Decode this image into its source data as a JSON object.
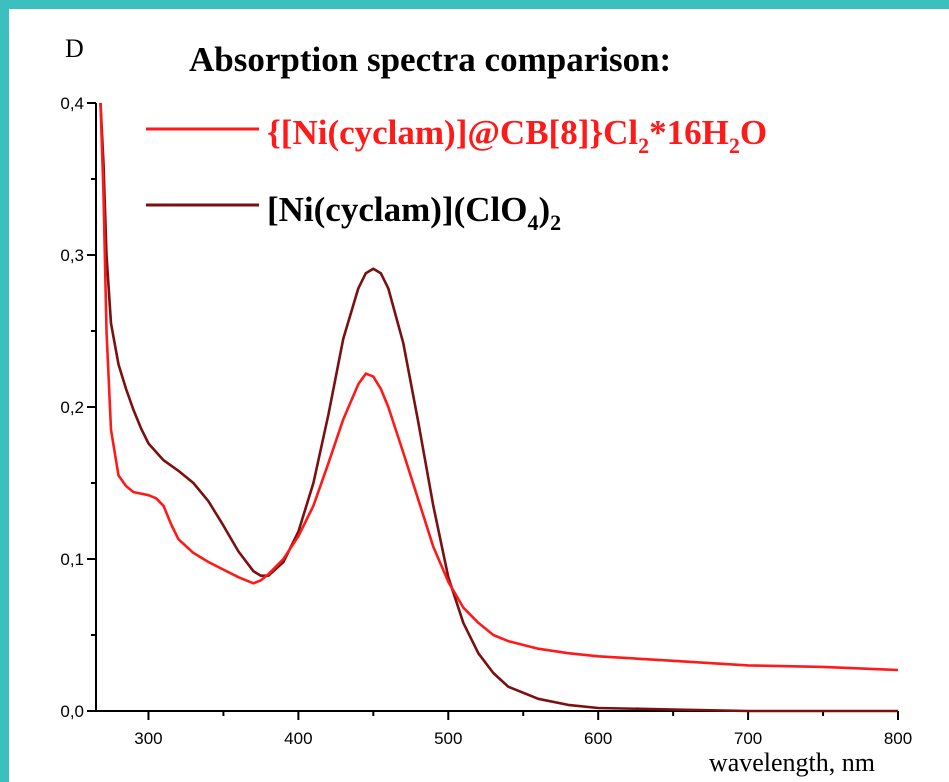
{
  "chart_data": {
    "type": "line",
    "title": "Absorption spectra comparison:",
    "ylabel": "D",
    "xlabel": "wavelength, nm",
    "xlim": [
      265,
      800
    ],
    "ylim": [
      0,
      0.4
    ],
    "x_ticks": [
      "300",
      "400",
      "500",
      "600",
      "700",
      "800"
    ],
    "y_ticks": [
      "0,0",
      "0,1",
      "0,2",
      "0,3",
      "0,4"
    ],
    "grid": false,
    "legend_position": "top-left",
    "series": [
      {
        "name": "{[Ni(cyclam)]@CB[8]}Cl2*16H2O",
        "color": "#ff1a1a",
        "x": [
          268,
          270,
          272,
          275,
          280,
          285,
          290,
          295,
          300,
          305,
          310,
          315,
          320,
          330,
          340,
          350,
          360,
          370,
          375,
          380,
          390,
          400,
          410,
          420,
          430,
          440,
          445,
          450,
          455,
          460,
          470,
          480,
          490,
          500,
          510,
          520,
          530,
          540,
          560,
          580,
          600,
          650,
          700,
          750,
          800
        ],
        "y": [
          0.4,
          0.34,
          0.25,
          0.185,
          0.155,
          0.148,
          0.144,
          0.143,
          0.142,
          0.14,
          0.135,
          0.123,
          0.113,
          0.104,
          0.098,
          0.093,
          0.088,
          0.084,
          0.086,
          0.09,
          0.1,
          0.115,
          0.135,
          0.163,
          0.192,
          0.215,
          0.222,
          0.22,
          0.212,
          0.2,
          0.17,
          0.139,
          0.108,
          0.085,
          0.068,
          0.058,
          0.05,
          0.046,
          0.041,
          0.038,
          0.036,
          0.033,
          0.03,
          0.029,
          0.027
        ]
      },
      {
        "name": "[Ni(cyclam)](ClO4)2",
        "color": "#7a1010",
        "x": [
          268,
          270,
          272,
          275,
          280,
          285,
          290,
          295,
          300,
          310,
          320,
          330,
          340,
          350,
          360,
          370,
          375,
          380,
          390,
          400,
          410,
          420,
          430,
          440,
          445,
          450,
          455,
          460,
          470,
          480,
          490,
          500,
          510,
          520,
          530,
          540,
          560,
          580,
          600,
          650,
          700,
          750,
          800
        ],
        "y": [
          0.4,
          0.36,
          0.3,
          0.255,
          0.228,
          0.212,
          0.198,
          0.186,
          0.176,
          0.165,
          0.158,
          0.15,
          0.138,
          0.122,
          0.105,
          0.092,
          0.089,
          0.089,
          0.098,
          0.118,
          0.15,
          0.195,
          0.245,
          0.278,
          0.288,
          0.291,
          0.288,
          0.278,
          0.242,
          0.19,
          0.135,
          0.088,
          0.058,
          0.038,
          0.025,
          0.016,
          0.008,
          0.004,
          0.002,
          0.001,
          0.0,
          0.0,
          0.0
        ]
      }
    ]
  },
  "legend": {
    "red": {
      "pre": "{[Ni(cyclam)]@CB[8]}Cl",
      "sub1": "2",
      "mid": "*16H",
      "sub2": "2",
      "post": "O"
    },
    "dark": {
      "pre": "[Ni(cyclam)](ClO",
      "sub1": "4",
      "mid": ")",
      "sub2": "2"
    }
  }
}
